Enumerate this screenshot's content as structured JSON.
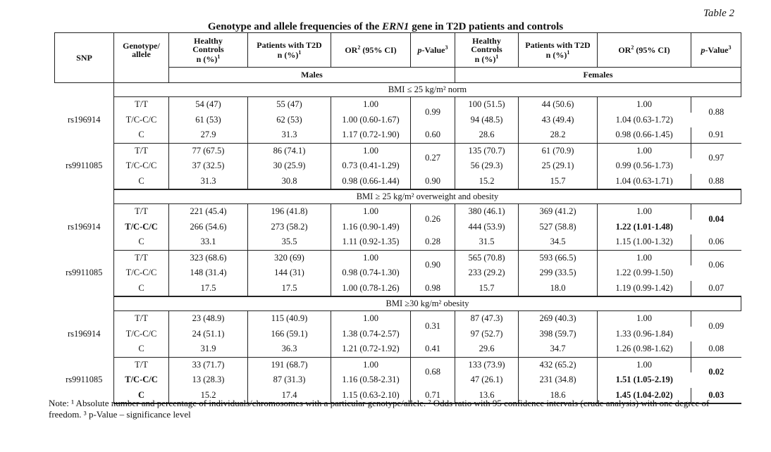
{
  "table_label": "Table 2",
  "title": {
    "pre": "Genotype and allele frequencies of the ",
    "gene": "ERN1",
    "post": " gene in T2D patients and controls"
  },
  "headers": {
    "snp": "SNP",
    "genotype": "Genotype/ allele",
    "healthy": "Healthy Controls n (%)",
    "patients": "Patients with T2D n (%)",
    "or": "OR (95% CI)",
    "p": "p-Value",
    "healthy_f": "Healthy Controls n (%)",
    "patients_f": "Patients with T2D n (%)",
    "or_f": "OR (95% CI)",
    "p_f": "p-Value",
    "males": "Males",
    "females": "Females"
  },
  "bands": [
    "BMI ≤ 25 kg/m² norm",
    "BMI ≥ 25 kg/m² overweight and obesity",
    "BMI ≥30 kg/m² obesity"
  ],
  "groups": [
    {
      "snp": "rs196914",
      "rows": [
        {
          "g": "T/T",
          "hm": "54 (47)",
          "pm": "55 (47)",
          "om": "1.00",
          "pm_p": "0.99",
          "hf": "100 (51.5)",
          "pf": "44 (50.6)",
          "of": "1.00",
          "pf_p": "0.88"
        },
        {
          "g": "T/C-C/C",
          "hm": "61 (53)",
          "pm": "62 (53)",
          "om": "1.00 (0.60-1.67)",
          "hf": "94 (48.5)",
          "pf": "43 (49.4)",
          "of": "1.04 (0.63-1.72)"
        },
        {
          "g": "C",
          "hm": "27.9",
          "pm": "31.3",
          "om": "1.17 (0.72-1.90)",
          "pm_p": "0.60",
          "hf": "28.6",
          "pf": "28.2",
          "of": "0.98 (0.66-1.45)",
          "pf_p": "0.91"
        }
      ]
    },
    {
      "snp": "rs9911085",
      "rows": [
        {
          "g": "T/T",
          "hm": "77 (67.5)",
          "pm": "86 (74.1)",
          "om": "1.00",
          "pm_p": "0.27",
          "hf": "135 (70.7)",
          "pf": "61 (70.9)",
          "of": "1.00",
          "pf_p": "0.97"
        },
        {
          "g": "T/C-C/C",
          "hm": "37 (32.5)",
          "pm": "30 (25.9)",
          "om": "0.73 (0.41-1.29)",
          "hf": "56 (29.3)",
          "pf": "25 (29.1)",
          "of": "0.99 (0.56-1.73)"
        },
        {
          "g": "C",
          "hm": "31.3",
          "pm": "30.8",
          "om": "0.98 (0.66-1.44)",
          "pm_p": "0.90",
          "hf": "15.2",
          "pf": "15.7",
          "of": "1.04 (0.63-1.71)",
          "pf_p": "0.88"
        }
      ]
    },
    {
      "snp": "rs196914",
      "rows": [
        {
          "g": "T/T",
          "hm": "221 (45.4)",
          "pm": "196 (41.8)",
          "om": "1.00",
          "pm_p": "0.26",
          "hf": "380 (46.1)",
          "pf": "369 (41.2)",
          "of": "1.00",
          "pf_p": "0.04"
        },
        {
          "g": "T/C-C/C",
          "hm": "266 (54.6)",
          "pm": "273 (58.2)",
          "om": "1.16 (0.90-1.49)",
          "hf": "444 (53.9)",
          "pf": "527 (58.8)",
          "of": "1.22 (1.01-1.48)"
        },
        {
          "g": "C",
          "hm": "33.1",
          "pm": "35.5",
          "om": "1.11 (0.92-1.35)",
          "pm_p": "0.28",
          "hf": "31.5",
          "pf": "34.5",
          "of": "1.15 (1.00-1.32)",
          "pf_p": "0.06"
        }
      ]
    },
    {
      "snp": "rs9911085",
      "rows": [
        {
          "g": "T/T",
          "hm": "323 (68.6)",
          "pm": "320 (69)",
          "om": "1.00",
          "pm_p": "0.90",
          "hf": "565 (70.8)",
          "pf": "593 (66.5)",
          "of": "1.00",
          "pf_p": "0.06"
        },
        {
          "g": "T/C-C/C",
          "hm": "148 (31.4)",
          "pm": "144 (31)",
          "om": "0.98 (0.74-1.30)",
          "hf": "233 (29.2)",
          "pf": "299 (33.5)",
          "of": "1.22 (0.99-1.50)"
        },
        {
          "g": "C",
          "hm": "17.5",
          "pm": "17.5",
          "om": "1.00 (0.78-1.26)",
          "pm_p": "0.98",
          "hf": "15.7",
          "pf": "18.0",
          "of": "1.19 (0.99-1.42)",
          "pf_p": "0.07"
        }
      ]
    },
    {
      "snp": "rs196914",
      "rows": [
        {
          "g": "T/T",
          "hm": "23 (48.9)",
          "pm": "115 (40.9)",
          "om": "1.00",
          "pm_p": "0.31",
          "hf": "87 (47.3)",
          "pf": "269 (40.3)",
          "of": "1.00",
          "pf_p": "0.09"
        },
        {
          "g": "T/C-C/C",
          "hm": "24 (51.1)",
          "pm": "166 (59.1)",
          "om": "1.38 (0.74-2.57)",
          "hf": "97 (52.7)",
          "pf": "398 (59.7)",
          "of": "1.33 (0.96-1.84)"
        },
        {
          "g": "C",
          "hm": "31.9",
          "pm": "36.3",
          "om": "1.21 (0.72-1.92)",
          "pm_p": "0.41",
          "hf": "29.6",
          "pf": "34.7",
          "of": "1.26 (0.98-1.62)",
          "pf_p": "0.08"
        }
      ]
    },
    {
      "snp": "rs9911085",
      "rows": [
        {
          "g": "T/T",
          "hm": "33 (71.7)",
          "pm": "191 (68.7)",
          "om": "1.00",
          "pm_p": "0.68",
          "hf": "133 (73.9)",
          "pf": "432 (65.2)",
          "of": "1.00",
          "pf_p": "0.02"
        },
        {
          "g": "T/C-C/C",
          "hm": "13 (28.3)",
          "pm": "87 (31.3)",
          "om": "1.16 (0.58-2.31)",
          "hf": "47 (26.1)",
          "pf": "231 (34.8)",
          "of": "1.51 (1.05-2.19)"
        },
        {
          "g": "C",
          "hm": "15.2",
          "pm": "17.4",
          "om": "1.15 (0.63-2.10)",
          "pm_p": "0.71",
          "hf": "13.6",
          "pf": "18.6",
          "of": "1.45 (1.04-2.02)",
          "pf_p": "0.03"
        }
      ]
    }
  ],
  "note": "Note: ¹ Absolute number and percentage of individuals/chromosomes with a particular genotype/allele. ² Odds ratio with 95 confidence intervals (crude analysis) with one degree of freedom. ³ p-Value – significance level"
}
